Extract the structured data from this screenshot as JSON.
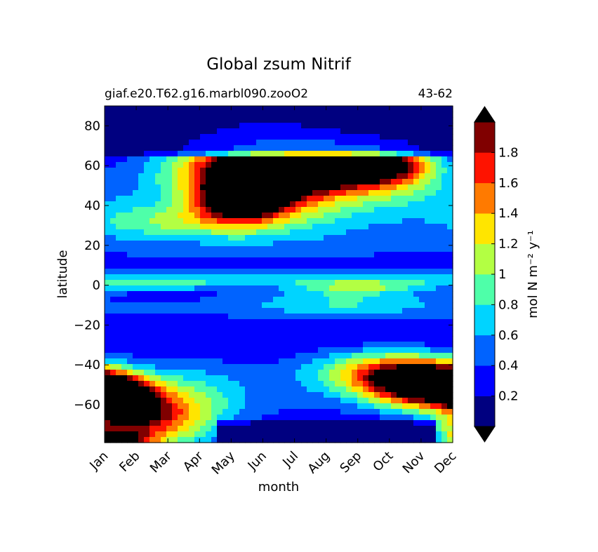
{
  "chart_data": {
    "type": "heatmap",
    "title": "Global zsum Nitrif",
    "subtitle_left": "giaf.e20.T62.g16.marbl090.zooO2",
    "subtitle_right": "43-62",
    "xlabel": "month",
    "ylabel": "latitude",
    "x_categories": [
      "Jan",
      "Feb",
      "Mar",
      "Apr",
      "May",
      "Jun",
      "Jul",
      "Aug",
      "Sep",
      "Oct",
      "Nov",
      "Dec"
    ],
    "yticks": [
      "80",
      "60",
      "40",
      "20",
      "0",
      "−20",
      "−40",
      "−60"
    ],
    "ylim": [
      -79,
      90
    ],
    "colorbar": {
      "label": "mol N m⁻² y⁻¹",
      "ticks": [
        "0.2",
        "0.4",
        "0.6",
        "0.8",
        "1",
        "1.2",
        "1.4",
        "1.6",
        "1.8"
      ],
      "levels": [
        0.0,
        0.2,
        0.4,
        0.6,
        0.8,
        1.0,
        1.2,
        1.4,
        1.6,
        1.8,
        2.0
      ],
      "colors": [
        "#000080",
        "#0000ff",
        "#0063ff",
        "#00d4ff",
        "#4effa9",
        "#b3ff43",
        "#ffe500",
        "#ff7a00",
        "#fe1300",
        "#800000"
      ],
      "extend_min_color": "#000000",
      "extend_max_color": "#000000",
      "over_color": "#000000"
    },
    "features": [
      {
        "month": 5.2,
        "lat": 58,
        "sx": 2.0,
        "sy": 15,
        "amp": 2.6
      },
      {
        "month": 7.6,
        "lat": 62,
        "sx": 1.5,
        "sy": 7,
        "amp": 1.8
      },
      {
        "month": 4.3,
        "lat": 43,
        "sx": 0.9,
        "sy": 8,
        "amp": 1.6
      },
      {
        "month": 9.0,
        "lat": 60,
        "sx": 1.1,
        "sy": 9,
        "amp": 0.9
      },
      {
        "month": 2.0,
        "lat": 32,
        "sx": 1.8,
        "sy": 6,
        "amp": 0.5
      },
      {
        "month": 10.3,
        "lat": 45,
        "sx": 2.0,
        "sy": 9,
        "amp": 0.35
      },
      {
        "month": 10.4,
        "lat": -50,
        "sx": 1.4,
        "sy": 8,
        "amp": 2.6
      },
      {
        "month": 8.6,
        "lat": -43,
        "sx": 1.4,
        "sy": 7,
        "amp": 0.9
      },
      {
        "month": 0.3,
        "lat": -56,
        "sx": 0.8,
        "sy": 7,
        "amp": 2.3
      },
      {
        "month": 0.9,
        "lat": -67,
        "sx": 1.3,
        "sy": 10,
        "amp": 1.4
      },
      {
        "month": 2.6,
        "lat": -62,
        "sx": 1.2,
        "sy": 14,
        "amp": 0.6
      },
      {
        "month": 7.6,
        "lat": -8,
        "sx": 2.2,
        "sy": 5,
        "amp": 0.45
      },
      {
        "month": 8.0,
        "lat": -1,
        "sx": 1.3,
        "sy": 2.5,
        "amp": 0.55
      },
      {
        "month": 1.4,
        "lat": 0,
        "sx": 1.6,
        "sy": 2.5,
        "amp": 0.35
      },
      {
        "month": 5.5,
        "lat": -52,
        "sx": 3.0,
        "sy": 12,
        "amp": 0.25
      },
      {
        "month": 0.2,
        "lat": -77,
        "sx": 0.8,
        "sy": 2.5,
        "amp": 1.6
      },
      {
        "month": 11.2,
        "lat": -72,
        "sx": 0.6,
        "sy": 4,
        "amp": 0.5
      }
    ],
    "background": {
      "lat_bands": [
        {
          "lat": 3,
          "sx": 0,
          "sy": 4,
          "amp": 0.45
        },
        {
          "lat": -12,
          "sx": 0,
          "sy": 8,
          "amp": 0.2
        },
        {
          "lat": 24,
          "sx": 0,
          "sy": 16,
          "amp": 0.25
        }
      ],
      "base": 0.2,
      "polar_north_lat": 63,
      "polar_south_lat": -66
    }
  }
}
